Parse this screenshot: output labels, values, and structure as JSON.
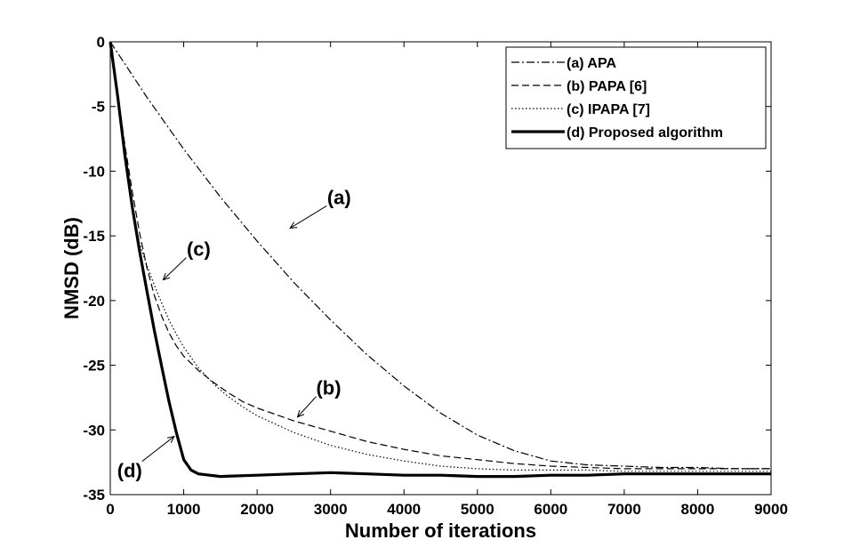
{
  "chart_data": {
    "type": "line",
    "xlabel": "Number of iterations",
    "ylabel": "NMSD (dB)",
    "xlim": [
      0,
      9000
    ],
    "ylim": [
      -35,
      0
    ],
    "xticks": [
      0,
      1000,
      2000,
      3000,
      4000,
      5000,
      6000,
      7000,
      8000,
      9000
    ],
    "yticks": [
      0,
      -5,
      -10,
      -15,
      -20,
      -25,
      -30,
      -35
    ],
    "grid": false,
    "legend_position": "top-right",
    "series": [
      {
        "name": "(a) APA",
        "style": "dashdot",
        "x": [
          0,
          500,
          1000,
          1500,
          2000,
          2500,
          3000,
          3500,
          4000,
          4500,
          5000,
          5500,
          6000,
          6500,
          7000,
          7500,
          8000,
          8500,
          9000
        ],
        "y": [
          0,
          -4.3,
          -8.3,
          -12.0,
          -15.4,
          -18.6,
          -21.5,
          -24.2,
          -26.6,
          -28.7,
          -30.4,
          -31.6,
          -32.4,
          -32.7,
          -32.8,
          -32.9,
          -32.9,
          -33.0,
          -33.0
        ]
      },
      {
        "name": "(b) PAPA [6]",
        "style": "dashed",
        "x": [
          0,
          100,
          200,
          300,
          400,
          500,
          600,
          700,
          800,
          900,
          1000,
          1200,
          1400,
          1600,
          1800,
          2000,
          2500,
          3000,
          3500,
          4000,
          4500,
          5000,
          5500,
          6000,
          6500,
          7000,
          7500,
          8000,
          8500,
          9000
        ],
        "y": [
          0,
          -4.0,
          -8.0,
          -11.6,
          -14.8,
          -17.5,
          -19.6,
          -21.2,
          -22.5,
          -23.5,
          -24.3,
          -25.4,
          -26.3,
          -27.1,
          -27.8,
          -28.3,
          -29.3,
          -30.1,
          -30.9,
          -31.5,
          -32.0,
          -32.3,
          -32.6,
          -32.8,
          -32.9,
          -33.0,
          -33.0,
          -33.0,
          -33.0,
          -33.0
        ]
      },
      {
        "name": "(c) IPAPA [7]",
        "style": "dotted",
        "x": [
          0,
          100,
          200,
          300,
          400,
          500,
          600,
          700,
          800,
          900,
          1000,
          1200,
          1400,
          1600,
          1800,
          2000,
          2500,
          3000,
          3500,
          4000,
          4500,
          5000,
          5500,
          6000,
          6500,
          7000,
          7500,
          8000,
          8500,
          9000
        ],
        "y": [
          0,
          -4.5,
          -9.0,
          -13.0,
          -15.6,
          -17.3,
          -18.8,
          -20.2,
          -21.5,
          -22.6,
          -23.6,
          -25.2,
          -26.4,
          -27.4,
          -28.2,
          -28.9,
          -30.2,
          -31.2,
          -31.9,
          -32.4,
          -32.8,
          -33.0,
          -33.1,
          -33.1,
          -33.1,
          -33.2,
          -33.2,
          -33.2,
          -33.2,
          -33.2
        ]
      },
      {
        "name": "(d) Proposed algorithm",
        "style": "solid",
        "x": [
          0,
          100,
          200,
          300,
          400,
          500,
          600,
          700,
          800,
          900,
          1000,
          1100,
          1200,
          1500,
          2000,
          2500,
          3000,
          3500,
          4000,
          4500,
          5000,
          5500,
          6000,
          6500,
          7000,
          7500,
          8000,
          8500,
          9000
        ],
        "y": [
          0,
          -4.2,
          -8.8,
          -12.8,
          -16.2,
          -19.3,
          -22.3,
          -25.1,
          -27.8,
          -30.2,
          -32.3,
          -33.1,
          -33.4,
          -33.6,
          -33.5,
          -33.4,
          -33.3,
          -33.4,
          -33.5,
          -33.5,
          -33.6,
          -33.6,
          -33.5,
          -33.5,
          -33.4,
          -33.4,
          -33.4,
          -33.4,
          -33.4
        ]
      }
    ],
    "annotations": [
      {
        "label": "(a)",
        "target": [
          2450,
          -14.4
        ]
      },
      {
        "label": "(b)",
        "target": [
          2550,
          -29.0
        ]
      },
      {
        "label": "(c)",
        "target": [
          720,
          -18.4
        ]
      },
      {
        "label": "(d)",
        "target": [
          870,
          -30.5
        ]
      }
    ]
  }
}
